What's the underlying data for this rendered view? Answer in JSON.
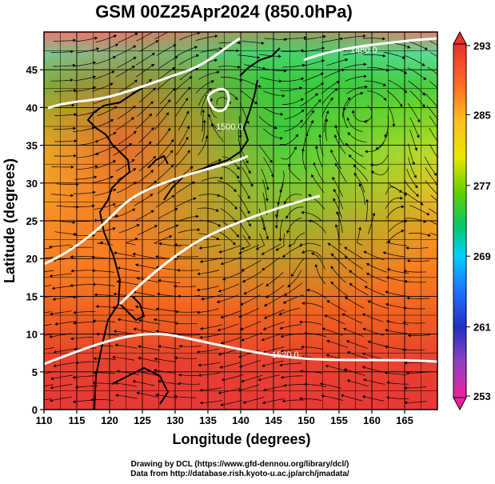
{
  "title": "GSM 00Z25Apr2024 (850.0hPa)",
  "xlabel": "Longitude (degrees)",
  "ylabel": "Latitude  (degrees)",
  "x_ticks": [
    "110",
    "115",
    "120",
    "125",
    "130",
    "135",
    "140",
    "145",
    "150",
    "155",
    "160",
    "165"
  ],
  "x_tick_values": [
    110,
    115,
    120,
    125,
    130,
    135,
    140,
    145,
    150,
    155,
    160,
    165
  ],
  "y_ticks": [
    "0",
    "5",
    "10",
    "15",
    "20",
    "25",
    "30",
    "35",
    "40",
    "45"
  ],
  "y_tick_values": [
    0,
    5,
    10,
    15,
    20,
    25,
    30,
    35,
    40,
    45
  ],
  "xlim": [
    110,
    170
  ],
  "ylim": [
    0,
    50
  ],
  "colorbar": {
    "labels": [
      "293",
      "285",
      "277",
      "269",
      "261",
      "253"
    ],
    "values": [
      293,
      285,
      277,
      269,
      261,
      253
    ],
    "range": [
      253,
      293
    ],
    "colors": [
      "#e8146e",
      "#c040c0",
      "#3030d0",
      "#2060ff",
      "#00c8ff",
      "#00e0a0",
      "#40d000",
      "#a0e000",
      "#f0e000",
      "#ffa000",
      "#ff5000",
      "#e02020"
    ]
  },
  "contour_labels": [
    "1520.0",
    "1480.0",
    "1500.0"
  ],
  "credits": {
    "line1": "Drawing by DCL (https://www.gfd-dennou.org/library/dcl/)",
    "line2": "Data from http://database.rish.kyoto-u.ac.jp/arch/jmadata/"
  }
}
